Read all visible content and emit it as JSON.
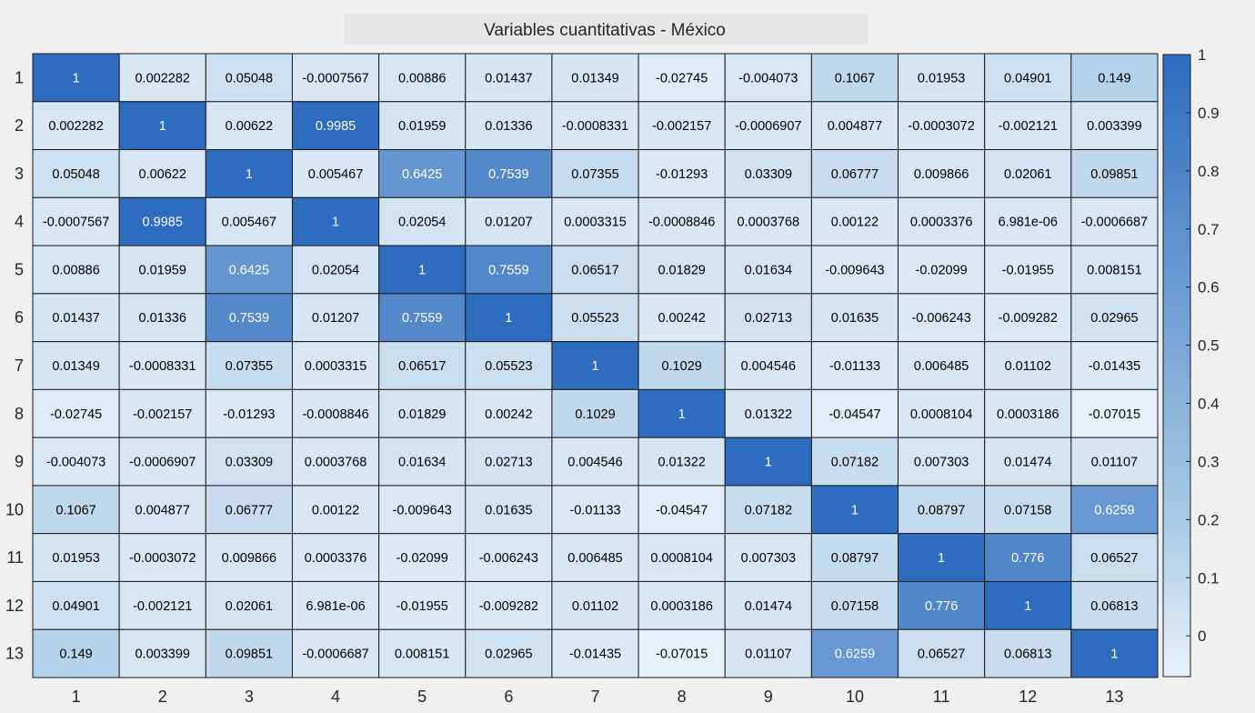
{
  "chart_data": {
    "type": "heatmap",
    "title": "Variables cuantitativas - México",
    "x_labels": [
      "1",
      "2",
      "3",
      "4",
      "5",
      "6",
      "7",
      "8",
      "9",
      "10",
      "11",
      "12",
      "13"
    ],
    "y_labels": [
      "1",
      "2",
      "3",
      "4",
      "5",
      "6",
      "7",
      "8",
      "9",
      "10",
      "11",
      "12",
      "13"
    ],
    "cell_labels": [
      [
        "1",
        "0.002282",
        "0.05048",
        "-0.0007567",
        "0.00886",
        "0.01437",
        "0.01349",
        "-0.02745",
        "-0.004073",
        "0.1067",
        "0.01953",
        "0.04901",
        "0.149"
      ],
      [
        "0.002282",
        "1",
        "0.00622",
        "0.9985",
        "0.01959",
        "0.01336",
        "-0.0008331",
        "-0.002157",
        "-0.0006907",
        "0.004877",
        "-0.0003072",
        "-0.002121",
        "0.003399"
      ],
      [
        "0.05048",
        "0.00622",
        "1",
        "0.005467",
        "0.6425",
        "0.7539",
        "0.07355",
        "-0.01293",
        "0.03309",
        "0.06777",
        "0.009866",
        "0.02061",
        "0.09851"
      ],
      [
        "-0.0007567",
        "0.9985",
        "0.005467",
        "1",
        "0.02054",
        "0.01207",
        "0.0003315",
        "-0.0008846",
        "0.0003768",
        "0.00122",
        "0.0003376",
        "6.981e-06",
        "-0.0006687"
      ],
      [
        "0.00886",
        "0.01959",
        "0.6425",
        "0.02054",
        "1",
        "0.7559",
        "0.06517",
        "0.01829",
        "0.01634",
        "-0.009643",
        "-0.02099",
        "-0.01955",
        "0.008151"
      ],
      [
        "0.01437",
        "0.01336",
        "0.7539",
        "0.01207",
        "0.7559",
        "1",
        "0.05523",
        "0.00242",
        "0.02713",
        "0.01635",
        "-0.006243",
        "-0.009282",
        "0.02965"
      ],
      [
        "0.01349",
        "-0.0008331",
        "0.07355",
        "0.0003315",
        "0.06517",
        "0.05523",
        "1",
        "0.1029",
        "0.004546",
        "-0.01133",
        "0.006485",
        "0.01102",
        "-0.01435"
      ],
      [
        "-0.02745",
        "-0.002157",
        "-0.01293",
        "-0.0008846",
        "0.01829",
        "0.00242",
        "0.1029",
        "1",
        "0.01322",
        "-0.04547",
        "0.0008104",
        "0.0003186",
        "-0.07015"
      ],
      [
        "-0.004073",
        "-0.0006907",
        "0.03309",
        "0.0003768",
        "0.01634",
        "0.02713",
        "0.004546",
        "0.01322",
        "1",
        "0.07182",
        "0.007303",
        "0.01474",
        "0.01107"
      ],
      [
        "0.1067",
        "0.004877",
        "0.06777",
        "0.00122",
        "-0.009643",
        "0.01635",
        "-0.01133",
        "-0.04547",
        "0.07182",
        "1",
        "0.08797",
        "0.07158",
        "0.6259"
      ],
      [
        "0.01953",
        "-0.0003072",
        "0.009866",
        "0.0003376",
        "-0.02099",
        "-0.006243",
        "0.006485",
        "0.0008104",
        "0.007303",
        "0.08797",
        "1",
        "0.776",
        "0.06527"
      ],
      [
        "0.04901",
        "-0.002121",
        "0.02061",
        "6.981e-06",
        "-0.01955",
        "-0.009282",
        "0.01102",
        "0.0003186",
        "0.01474",
        "0.07158",
        "0.776",
        "1",
        "0.06813"
      ],
      [
        "0.149",
        "0.003399",
        "0.09851",
        "-0.0006687",
        "0.008151",
        "0.02965",
        "-0.01435",
        "-0.07015",
        "0.01107",
        "0.6259",
        "0.06527",
        "0.06813",
        "1"
      ]
    ],
    "color_range": [
      -0.07015,
      1
    ],
    "colorbar": {
      "ticks": [
        "1",
        "0.9",
        "0.8",
        "0.7",
        "0.6",
        "0.5",
        "0.4",
        "0.3",
        "0.2",
        "0.1",
        "0"
      ]
    },
    "colors": {
      "low": "#e8f1fa",
      "mid": "#a8cbe5",
      "high": "#2e6cbf",
      "text_dark": "#000000",
      "text_light": "#ffffff"
    }
  }
}
